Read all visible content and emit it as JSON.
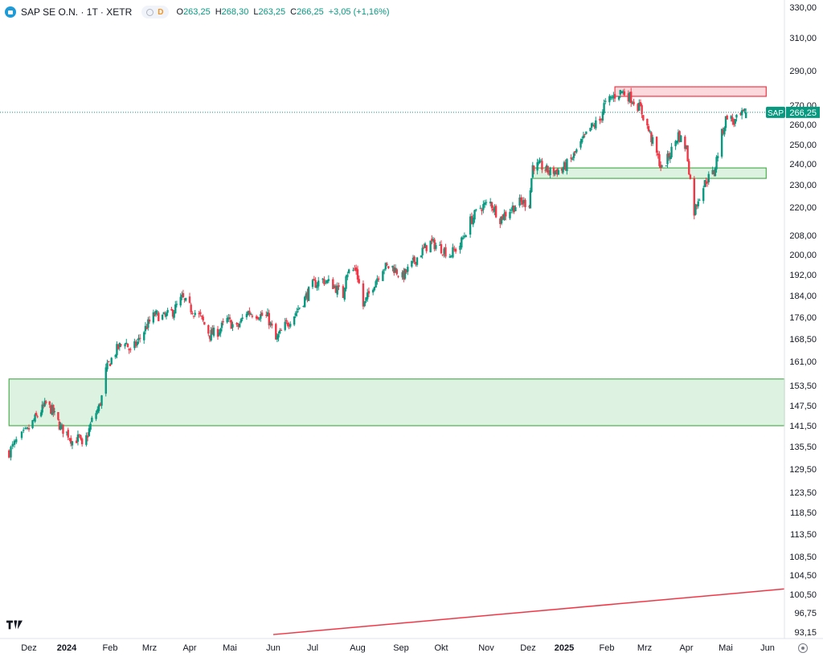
{
  "header": {
    "symbol_title": "SAP SE O.N. · 1T · XETR",
    "flag": "D",
    "ohlc": [
      {
        "k": "O",
        "v": "263,25"
      },
      {
        "k": "H",
        "v": "268,30"
      },
      {
        "k": "L",
        "v": "263,25"
      },
      {
        "k": "C",
        "v": "266,25"
      },
      {
        "k": "",
        "v": "+3,05 (+1,16%)"
      }
    ]
  },
  "colors": {
    "up": "#089981",
    "down": "#f23645",
    "support_fill": "#d8f0dc",
    "support_line": "#4caf50",
    "resistance_fill": "#fcd2d6",
    "resistance_line": "#f23645",
    "trend_line": "#f23645",
    "price_tag": "#089981",
    "axis_text": "#131722"
  },
  "chart_data": {
    "type": "candlestick",
    "symbol": "SAP",
    "interval": "1T",
    "y_scale": "log",
    "ylim": [
      90,
      330
    ],
    "last_price": {
      "label": "SAP",
      "value": 266.25,
      "text": "266,25"
    },
    "y_ticks": [
      {
        "value": 330,
        "label": "330,00"
      },
      {
        "value": 310,
        "label": "310,00"
      },
      {
        "value": 290,
        "label": "290,00"
      },
      {
        "value": 270,
        "label": "270,00"
      },
      {
        "value": 260,
        "label": "260,00"
      },
      {
        "value": 250,
        "label": "250,00"
      },
      {
        "value": 240,
        "label": "240,00"
      },
      {
        "value": 230,
        "label": "230,00"
      },
      {
        "value": 220,
        "label": "220,00"
      },
      {
        "value": 208,
        "label": "208,00"
      },
      {
        "value": 200,
        "label": "200,00"
      },
      {
        "value": 192,
        "label": "192,00"
      },
      {
        "value": 184,
        "label": "184,00"
      },
      {
        "value": 176,
        "label": "176,00"
      },
      {
        "value": 168.5,
        "label": "168,50"
      },
      {
        "value": 161,
        "label": "161,00"
      },
      {
        "value": 153.5,
        "label": "153,50"
      },
      {
        "value": 147.5,
        "label": "147,50"
      },
      {
        "value": 141.5,
        "label": "141,50"
      },
      {
        "value": 135.5,
        "label": "135,50"
      },
      {
        "value": 129.5,
        "label": "129,50"
      },
      {
        "value": 123.5,
        "label": "123,50"
      },
      {
        "value": 118.5,
        "label": "118,50"
      },
      {
        "value": 113.5,
        "label": "113,50"
      },
      {
        "value": 108.5,
        "label": "108,50"
      },
      {
        "value": 104.5,
        "label": "104,50"
      },
      {
        "value": 100.5,
        "label": "100,50"
      },
      {
        "value": 96.75,
        "label": "96,75"
      },
      {
        "value": 93.15,
        "label": "93,15"
      }
    ],
    "x_ticks": [
      {
        "date": "2023-12-01",
        "label": "Dez",
        "bold": false
      },
      {
        "date": "2024-01-01",
        "label": "2024",
        "bold": true
      },
      {
        "date": "2024-02-01",
        "label": "Feb",
        "bold": false
      },
      {
        "date": "2024-03-01",
        "label": "Mrz",
        "bold": false
      },
      {
        "date": "2024-04-01",
        "label": "Apr",
        "bold": false
      },
      {
        "date": "2024-05-01",
        "label": "Mai",
        "bold": false
      },
      {
        "date": "2024-06-01",
        "label": "Jun",
        "bold": false
      },
      {
        "date": "2024-07-01",
        "label": "Jul",
        "bold": false
      },
      {
        "date": "2024-08-01",
        "label": "Aug",
        "bold": false
      },
      {
        "date": "2024-09-01",
        "label": "Sep",
        "bold": false
      },
      {
        "date": "2024-10-01",
        "label": "Okt",
        "bold": false
      },
      {
        "date": "2024-11-01",
        "label": "Nov",
        "bold": false
      },
      {
        "date": "2024-12-01",
        "label": "Dez",
        "bold": false
      },
      {
        "date": "2025-01-01",
        "label": "2025",
        "bold": true
      },
      {
        "date": "2025-02-01",
        "label": "Feb",
        "bold": false
      },
      {
        "date": "2025-03-01",
        "label": "Mrz",
        "bold": false
      },
      {
        "date": "2025-04-01",
        "label": "Apr",
        "bold": false
      },
      {
        "date": "2025-05-01",
        "label": "Mai",
        "bold": false
      },
      {
        "date": "2025-06-01",
        "label": "Jun",
        "bold": false
      }
    ],
    "close_path": [
      [
        "2023-11-20",
        134
      ],
      [
        "2023-11-24",
        137
      ],
      [
        "2023-11-30",
        140
      ],
      [
        "2023-12-05",
        143
      ],
      [
        "2023-12-11",
        146
      ],
      [
        "2023-12-15",
        148
      ],
      [
        "2023-12-20",
        146
      ],
      [
        "2023-12-27",
        141
      ],
      [
        "2024-01-02",
        139
      ],
      [
        "2024-01-05",
        137
      ],
      [
        "2024-01-10",
        138
      ],
      [
        "2024-01-12",
        135
      ],
      [
        "2024-01-16",
        139
      ],
      [
        "2024-01-19",
        143
      ],
      [
        "2024-01-24",
        147
      ],
      [
        "2024-01-26",
        150
      ],
      [
        "2024-01-29",
        158
      ],
      [
        "2024-02-01",
        161
      ],
      [
        "2024-02-06",
        165
      ],
      [
        "2024-02-12",
        168
      ],
      [
        "2024-02-16",
        164
      ],
      [
        "2024-02-22",
        168
      ],
      [
        "2024-02-28",
        173
      ],
      [
        "2024-03-05",
        177
      ],
      [
        "2024-03-12",
        176
      ],
      [
        "2024-03-19",
        178
      ],
      [
        "2024-03-26",
        183
      ],
      [
        "2024-04-02",
        179
      ],
      [
        "2024-04-09",
        176
      ],
      [
        "2024-04-16",
        170
      ],
      [
        "2024-04-22",
        171
      ],
      [
        "2024-04-29",
        175
      ],
      [
        "2024-05-06",
        172
      ],
      [
        "2024-05-13",
        178
      ],
      [
        "2024-05-21",
        177
      ],
      [
        "2024-05-28",
        176
      ],
      [
        "2024-06-03",
        168
      ],
      [
        "2024-06-10",
        173
      ],
      [
        "2024-06-17",
        177
      ],
      [
        "2024-06-24",
        182
      ],
      [
        "2024-07-01",
        188
      ],
      [
        "2024-07-08",
        190
      ],
      [
        "2024-07-15",
        188
      ],
      [
        "2024-07-22",
        184
      ],
      [
        "2024-07-24",
        193
      ],
      [
        "2024-07-31",
        194
      ],
      [
        "2024-08-05",
        180
      ],
      [
        "2024-08-12",
        188
      ],
      [
        "2024-08-19",
        195
      ],
      [
        "2024-08-26",
        195
      ],
      [
        "2024-09-02",
        191
      ],
      [
        "2024-09-09",
        196
      ],
      [
        "2024-09-16",
        201
      ],
      [
        "2024-09-23",
        205
      ],
      [
        "2024-09-30",
        203
      ],
      [
        "2024-10-07",
        200
      ],
      [
        "2024-10-14",
        204
      ],
      [
        "2024-10-21",
        214
      ],
      [
        "2024-10-28",
        220
      ],
      [
        "2024-11-04",
        222
      ],
      [
        "2024-11-11",
        215
      ],
      [
        "2024-11-18",
        219
      ],
      [
        "2024-11-25",
        222
      ],
      [
        "2024-12-02",
        222
      ],
      [
        "2024-12-05",
        239
      ],
      [
        "2024-12-12",
        239
      ],
      [
        "2024-12-19",
        236
      ],
      [
        "2024-12-30",
        237
      ],
      [
        "2025-01-06",
        242
      ],
      [
        "2025-01-13",
        250
      ],
      [
        "2025-01-20",
        258
      ],
      [
        "2025-01-27",
        262
      ],
      [
        "2025-01-30",
        270
      ],
      [
        "2025-02-06",
        275
      ],
      [
        "2025-02-12",
        278
      ],
      [
        "2025-02-19",
        274
      ],
      [
        "2025-02-26",
        268
      ],
      [
        "2025-03-04",
        257
      ],
      [
        "2025-03-10",
        245
      ],
      [
        "2025-03-14",
        237
      ],
      [
        "2025-03-19",
        244
      ],
      [
        "2025-03-26",
        255
      ],
      [
        "2025-04-01",
        248
      ],
      [
        "2025-04-04",
        232
      ],
      [
        "2025-04-07",
        218
      ],
      [
        "2025-04-10",
        224
      ],
      [
        "2025-04-16",
        232
      ],
      [
        "2025-04-22",
        236
      ],
      [
        "2025-04-28",
        255
      ],
      [
        "2025-05-02",
        265
      ],
      [
        "2025-05-07",
        261
      ],
      [
        "2025-05-12",
        264
      ],
      [
        "2025-05-16",
        266.25
      ]
    ],
    "zones": [
      {
        "type": "support",
        "from": "2023-11-20",
        "to": "2025-06-30",
        "low": 141.5,
        "high": 155.5
      },
      {
        "type": "support",
        "from": "2024-12-05",
        "to": "2025-05-31",
        "low": 233,
        "high": 238
      },
      {
        "type": "resistance",
        "from": "2025-02-07",
        "to": "2025-05-31",
        "low": 275,
        "high": 280.5
      }
    ],
    "trend_line": {
      "from": [
        "2024-06-01",
        92.7
      ],
      "to": [
        "2025-06-30",
        101.6
      ]
    }
  },
  "icons": {
    "logo": "tradingview-logo-icon",
    "settings": "gear-icon"
  }
}
